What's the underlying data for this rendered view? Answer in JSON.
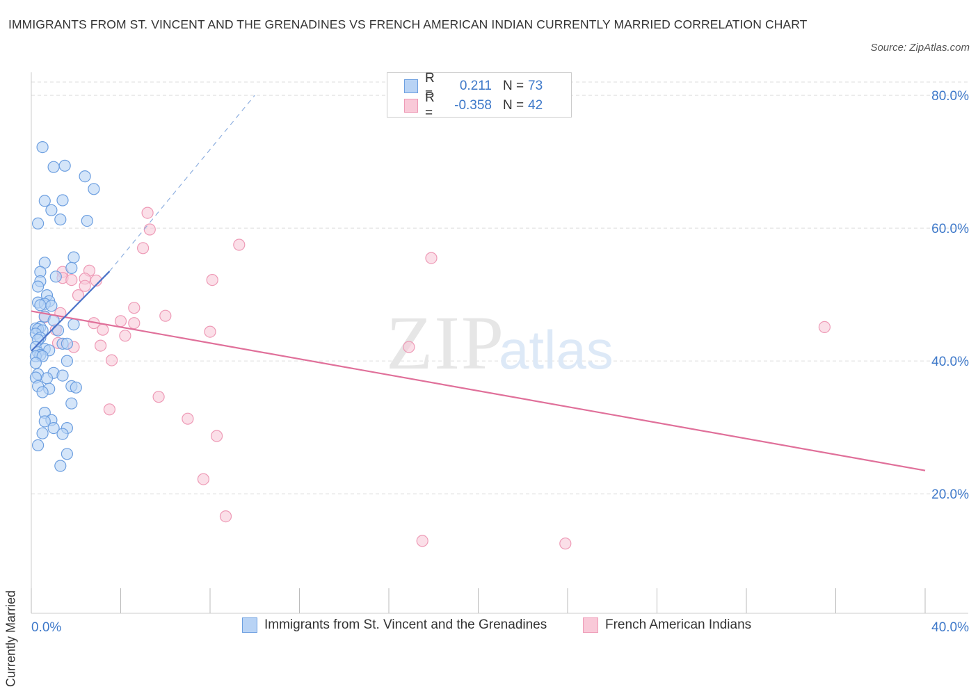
{
  "title": "IMMIGRANTS FROM ST. VINCENT AND THE GRENADINES VS FRENCH AMERICAN INDIAN CURRENTLY MARRIED CORRELATION CHART",
  "source": "Source: ZipAtlas.com",
  "watermark": {
    "zip": "ZIP",
    "atlas": "atlas"
  },
  "legend_top": {
    "rows": [
      {
        "r_label": "R =",
        "r_value": "0.211",
        "n_label": "N =",
        "n_value": "73"
      },
      {
        "r_label": "R =",
        "r_value": "-0.358",
        "n_label": "N =",
        "n_value": "42"
      }
    ]
  },
  "colors": {
    "blue_fill": "#b8d3f5",
    "blue_stroke": "#6d9fe0",
    "blue_line": "#4a72c8",
    "pink_fill": "#f9c9d8",
    "pink_stroke": "#ee9ab6",
    "pink_line": "#e0709a",
    "axis_text": "#3d78c9",
    "grid": "#dddddd"
  },
  "chart_data": {
    "type": "scatter",
    "title": "IMMIGRANTS FROM ST. VINCENT AND THE GRENADINES VS FRENCH AMERICAN INDIAN CURRENTLY MARRIED CORRELATION CHART",
    "xlabel": "",
    "ylabel": "Currently Married",
    "xlim": [
      0,
      40
    ],
    "ylim": [
      2,
      82
    ],
    "x_tick_labels": [
      "0.0%",
      "40.0%"
    ],
    "y_ticks": [
      20,
      40,
      60,
      80
    ],
    "y_tick_labels": [
      "20.0%",
      "40.0%",
      "60.0%",
      "80.0%"
    ],
    "grid": true,
    "legend_position": "bottom",
    "series": [
      {
        "name": "Immigrants from St. Vincent and the Grenadines",
        "color": "blue",
        "r": 0.211,
        "n": 73,
        "trend": {
          "x": [
            0,
            3.5
          ],
          "y": [
            41.5,
            53.5
          ]
        },
        "trend_extension": {
          "x": [
            3.5,
            10
          ],
          "y": [
            53.5,
            80
          ]
        },
        "points": [
          [
            0.5,
            72.2
          ],
          [
            1.0,
            69.2
          ],
          [
            1.5,
            69.4
          ],
          [
            2.4,
            67.8
          ],
          [
            2.8,
            65.9
          ],
          [
            0.6,
            64.1
          ],
          [
            1.4,
            64.2
          ],
          [
            0.9,
            62.7
          ],
          [
            1.3,
            61.3
          ],
          [
            0.3,
            60.7
          ],
          [
            2.5,
            61.1
          ],
          [
            1.9,
            55.6
          ],
          [
            0.6,
            54.8
          ],
          [
            1.8,
            54.0
          ],
          [
            0.4,
            53.4
          ],
          [
            1.1,
            52.7
          ],
          [
            0.4,
            52.0
          ],
          [
            0.3,
            51.2
          ],
          [
            0.7,
            49.9
          ],
          [
            0.3,
            48.8
          ],
          [
            0.8,
            49.0
          ],
          [
            0.6,
            48.6
          ],
          [
            0.4,
            48.4
          ],
          [
            0.9,
            48.3
          ],
          [
            0.6,
            46.7
          ],
          [
            1.0,
            46.1
          ],
          [
            1.9,
            45.5
          ],
          [
            0.4,
            45.1
          ],
          [
            0.2,
            44.9
          ],
          [
            0.3,
            44.8
          ],
          [
            0.5,
            44.6
          ],
          [
            1.2,
            44.6
          ],
          [
            0.2,
            44.1
          ],
          [
            0.4,
            43.5
          ],
          [
            0.3,
            43.2
          ],
          [
            1.4,
            42.6
          ],
          [
            1.6,
            42.6
          ],
          [
            0.2,
            42.1
          ],
          [
            0.6,
            41.8
          ],
          [
            0.8,
            41.6
          ],
          [
            0.3,
            41.3
          ],
          [
            0.4,
            40.9
          ],
          [
            0.2,
            40.7
          ],
          [
            0.5,
            40.7
          ],
          [
            1.6,
            40.0
          ],
          [
            0.2,
            39.7
          ],
          [
            0.3,
            38.0
          ],
          [
            0.2,
            37.5
          ],
          [
            1.0,
            38.2
          ],
          [
            1.4,
            37.8
          ],
          [
            0.7,
            37.4
          ],
          [
            0.3,
            36.2
          ],
          [
            0.8,
            35.8
          ],
          [
            1.8,
            36.2
          ],
          [
            2.0,
            36.0
          ],
          [
            0.5,
            35.3
          ],
          [
            1.8,
            33.6
          ],
          [
            0.6,
            32.2
          ],
          [
            0.9,
            31.1
          ],
          [
            0.6,
            30.9
          ],
          [
            1.0,
            29.9
          ],
          [
            1.6,
            29.9
          ],
          [
            0.5,
            29.1
          ],
          [
            1.4,
            29.0
          ],
          [
            0.3,
            27.3
          ],
          [
            1.6,
            26.0
          ],
          [
            1.3,
            24.2
          ]
        ]
      },
      {
        "name": "French American Indians",
        "color": "pink",
        "r": -0.358,
        "n": 42,
        "trend": {
          "x": [
            0,
            40
          ],
          "y": [
            47.5,
            23.5
          ]
        },
        "points": [
          [
            5.2,
            62.3
          ],
          [
            5.3,
            59.8
          ],
          [
            5.0,
            57.0
          ],
          [
            9.3,
            57.5
          ],
          [
            17.9,
            55.5
          ],
          [
            1.4,
            53.4
          ],
          [
            2.6,
            53.6
          ],
          [
            1.4,
            52.5
          ],
          [
            1.8,
            52.2
          ],
          [
            2.4,
            52.4
          ],
          [
            2.9,
            52.1
          ],
          [
            8.1,
            52.2
          ],
          [
            2.4,
            51.3
          ],
          [
            2.1,
            49.9
          ],
          [
            4.6,
            48.0
          ],
          [
            1.3,
            47.2
          ],
          [
            6.0,
            46.8
          ],
          [
            0.6,
            46.6
          ],
          [
            4.0,
            46.0
          ],
          [
            2.8,
            45.7
          ],
          [
            4.6,
            45.7
          ],
          [
            3.2,
            44.7
          ],
          [
            8.0,
            44.4
          ],
          [
            35.5,
            45.1
          ],
          [
            1.1,
            44.7
          ],
          [
            4.2,
            43.8
          ],
          [
            1.2,
            42.7
          ],
          [
            1.9,
            42.1
          ],
          [
            3.1,
            42.3
          ],
          [
            16.9,
            42.1
          ],
          [
            3.6,
            40.1
          ],
          [
            5.7,
            34.6
          ],
          [
            3.5,
            32.7
          ],
          [
            7.0,
            31.3
          ],
          [
            8.3,
            28.7
          ],
          [
            7.7,
            22.2
          ],
          [
            8.7,
            16.6
          ],
          [
            17.5,
            12.9
          ],
          [
            23.9,
            12.5
          ]
        ]
      }
    ]
  },
  "legend_bottom": {
    "items": [
      {
        "label": "Immigrants from St. Vincent and the Grenadines"
      },
      {
        "label": "French American Indians"
      }
    ]
  }
}
